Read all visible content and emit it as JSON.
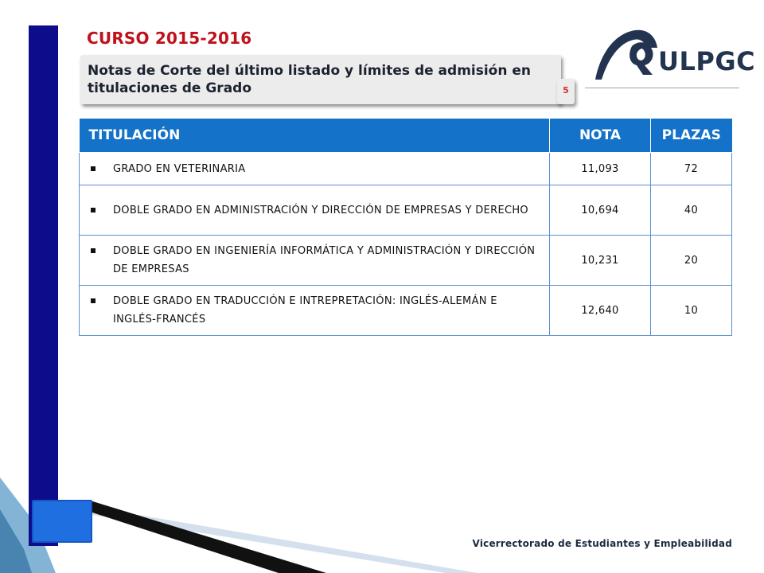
{
  "header": {
    "course": "CURSO 2015-2016",
    "subtitle": "Notas de Corte del último listado y límites de admisión en titulaciones de Grado",
    "page_number": "5"
  },
  "logo": {
    "text": "ULPGC",
    "color": "#22344f"
  },
  "table": {
    "columns": [
      "TITULACIÓN",
      "NOTA",
      "PLAZAS"
    ],
    "header_color": "#1472c8",
    "rows": [
      {
        "titulacion": "GRADO EN VETERINARIA",
        "nota": "11,093",
        "plazas": "72"
      },
      {
        "titulacion": "DOBLE GRADO EN ADMINISTRACIÓN Y DIRECCIÓN DE EMPRESAS Y DERECHO",
        "nota": "10,694",
        "plazas": "40"
      },
      {
        "titulacion": "DOBLE GRADO EN INGENIERÍA INFORMÁTICA Y ADMINISTRACIÓN Y DIRECCIÓN DE EMPRESAS",
        "nota": "10,231",
        "plazas": "20"
      },
      {
        "titulacion": "DOBLE GRADO EN TRADUCCIÓN E INTREPRETACIÓN: INGLÉS-ALEMÁN E INGLÉS-FRANCÉS",
        "nota": "12,640",
        "plazas": "10"
      }
    ]
  },
  "footer": {
    "text": "Vicerrectorado de Estudiantes y Empleabilidad"
  },
  "colors": {
    "title_red": "#c0101a",
    "sidebar_navy": "#0d0d8c",
    "accent_blue": "#1f6fe0"
  }
}
